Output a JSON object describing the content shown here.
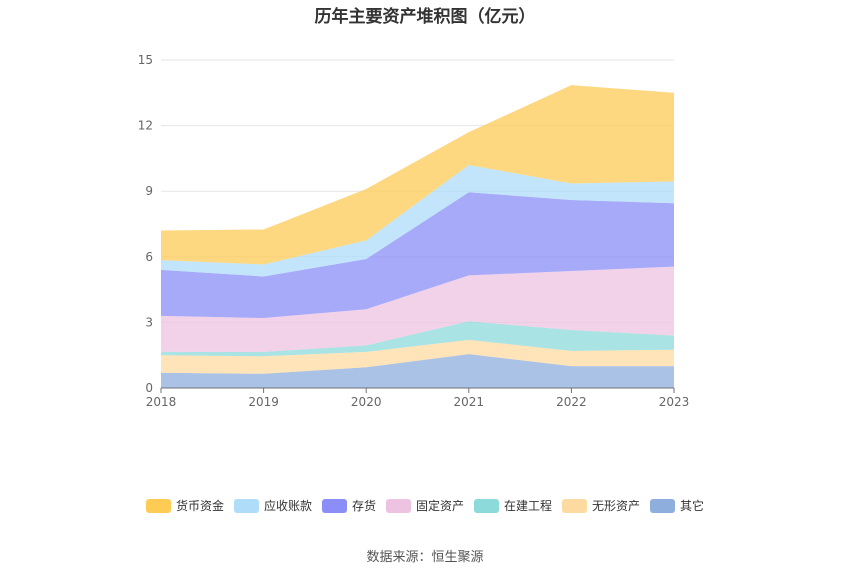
{
  "chart_data": {
    "type": "area",
    "stacked": true,
    "title": "历年主要资产堆积图（亿元）",
    "categories": [
      "2018",
      "2019",
      "2020",
      "2021",
      "2022",
      "2023"
    ],
    "ylim": [
      0,
      15
    ],
    "yticks": [
      0,
      3,
      6,
      9,
      12,
      15
    ],
    "grid": true,
    "legend_position": "bottom",
    "series": [
      {
        "name": "其它",
        "color": "#8eaedd",
        "values": [
          0.7,
          0.65,
          0.95,
          1.55,
          1.0,
          1.0
        ]
      },
      {
        "name": "无形资产",
        "color": "#fddba0",
        "values": [
          0.8,
          0.8,
          0.7,
          0.65,
          0.7,
          0.75
        ]
      },
      {
        "name": "在建工程",
        "color": "#8ddada",
        "values": [
          0.15,
          0.2,
          0.3,
          0.85,
          0.95,
          0.65
        ]
      },
      {
        "name": "固定资产",
        "color": "#eec3e1",
        "values": [
          1.65,
          1.55,
          1.65,
          2.1,
          2.7,
          3.15
        ]
      },
      {
        "name": "存货",
        "color": "#8a8ef6",
        "values": [
          2.1,
          1.9,
          2.3,
          3.8,
          3.25,
          2.9
        ]
      },
      {
        "name": "应收账款",
        "color": "#aedcf9",
        "values": [
          0.45,
          0.55,
          0.85,
          1.25,
          0.75,
          1.0
        ]
      },
      {
        "name": "货币资金",
        "color": "#fecb55",
        "values": [
          1.35,
          1.6,
          2.35,
          1.5,
          4.5,
          4.05
        ]
      }
    ]
  },
  "legend_order": [
    "货币资金",
    "应收账款",
    "存货",
    "固定资产",
    "在建工程",
    "无形资产",
    "其它"
  ],
  "source": "数据来源：恒生聚源"
}
